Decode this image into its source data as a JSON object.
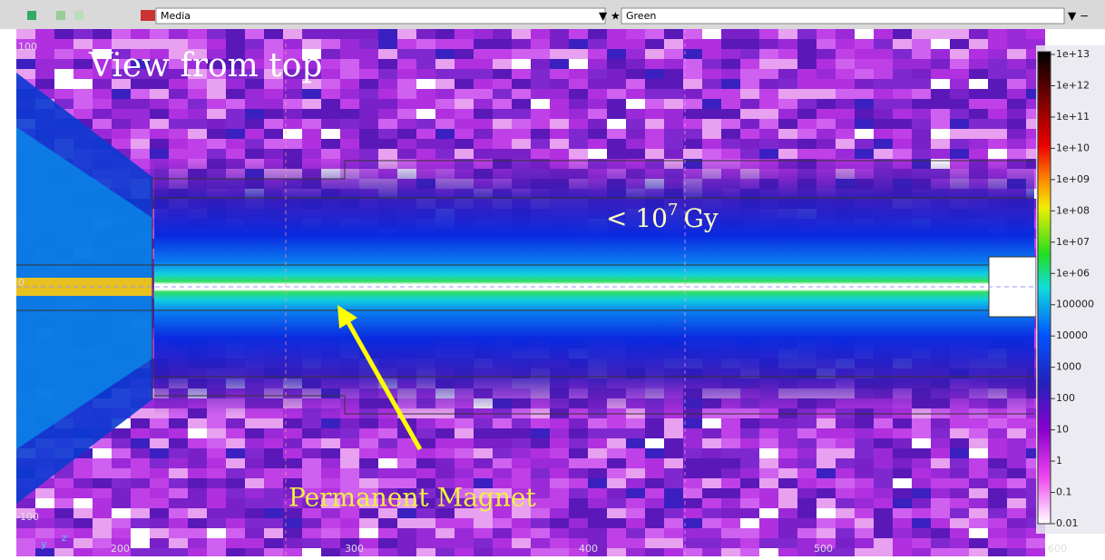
{
  "toolbar": {
    "material": "Media",
    "palette": "Green"
  },
  "annotations": {
    "view": "View from top",
    "dose": {
      "prefix": "< 10",
      "exponent": "7",
      "unit": "Gy"
    },
    "magnet": "Permanent Magnet"
  },
  "axes": {
    "y_labels": [
      "100",
      "0",
      "-100"
    ],
    "x_labels": [
      "200",
      "300",
      "400",
      "500",
      "600"
    ],
    "axis_y": "y",
    "axis_z": "z"
  },
  "colorbar": {
    "labels": [
      "1e+13",
      "1e+12",
      "1e+11",
      "1e+10",
      "1e+09",
      "1e+08",
      "1e+07",
      "1e+06",
      "100000",
      "10000",
      "1000",
      "100",
      "10",
      "1",
      "0.1",
      "0.01"
    ]
  }
}
